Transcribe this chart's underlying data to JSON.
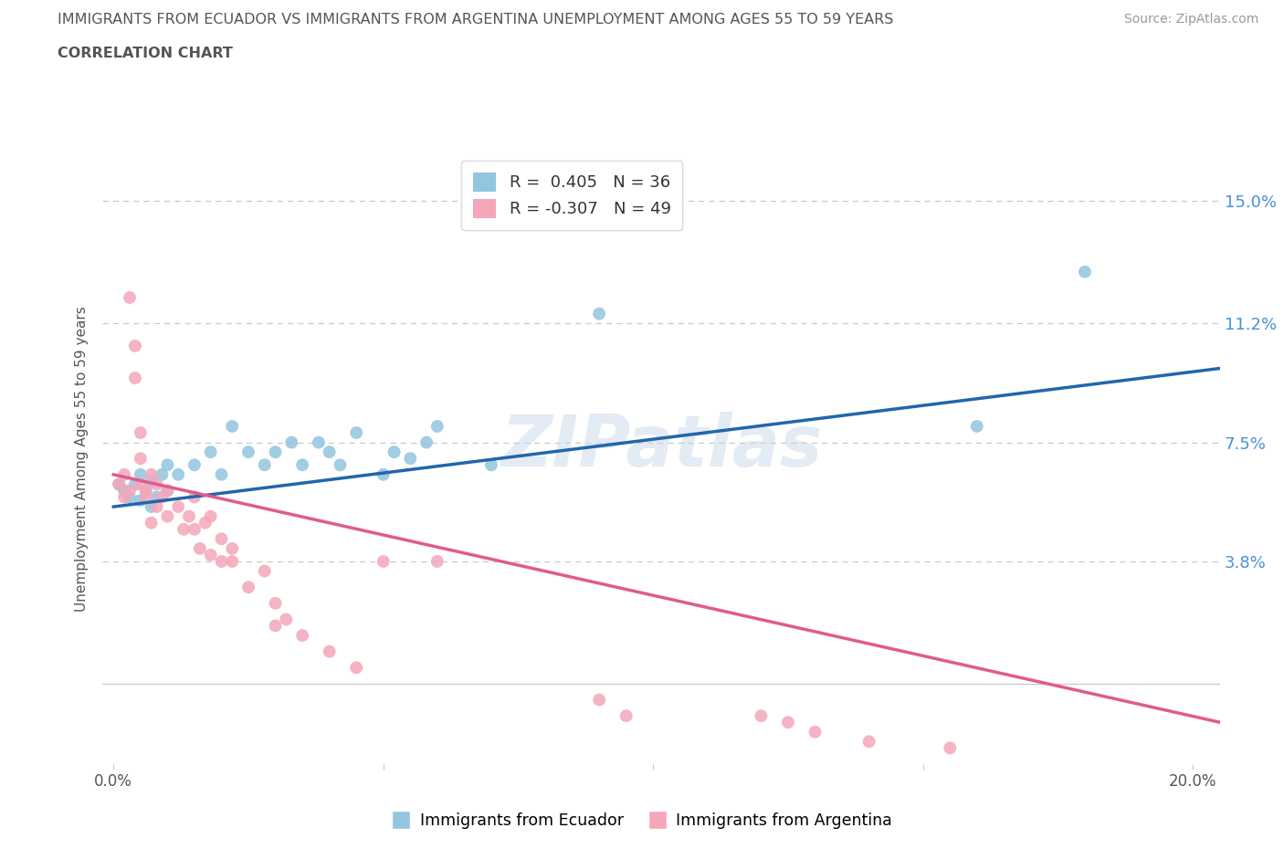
{
  "title_line1": "IMMIGRANTS FROM ECUADOR VS IMMIGRANTS FROM ARGENTINA UNEMPLOYMENT AMONG AGES 55 TO 59 YEARS",
  "title_line2": "CORRELATION CHART",
  "source_text": "Source: ZipAtlas.com",
  "watermark": "ZIPatlas",
  "ylabel": "Unemployment Among Ages 55 to 59 years",
  "xlim": [
    -0.002,
    0.205
  ],
  "ylim": [
    -0.025,
    0.165
  ],
  "xtick_vals": [
    0.0,
    0.05,
    0.1,
    0.15,
    0.2
  ],
  "xtick_labels": [
    "0.0%",
    "",
    "",
    "",
    "20.0%"
  ],
  "ytick_vals": [
    0.038,
    0.075,
    0.112,
    0.15
  ],
  "ytick_labels": [
    "3.8%",
    "7.5%",
    "11.2%",
    "15.0%"
  ],
  "legend_ecuador_r": "R =  0.405",
  "legend_ecuador_n": "N = 36",
  "legend_argentina_r": "R = -0.307",
  "legend_argentina_n": "N = 49",
  "ecuador_color": "#92c5de",
  "argentina_color": "#f4a7b9",
  "ecuador_line_color": "#2166ac",
  "argentina_line_color": "#e05c8a",
  "grid_color": "#c8c8c8",
  "title_color": "#555555",
  "axis_label_color": "#555555",
  "right_tick_color": "#4a90d9",
  "background_color": "#ffffff",
  "ecuador_scatter": [
    [
      0.001,
      0.062
    ],
    [
      0.002,
      0.06
    ],
    [
      0.003,
      0.058
    ],
    [
      0.004,
      0.062
    ],
    [
      0.005,
      0.057
    ],
    [
      0.005,
      0.065
    ],
    [
      0.006,
      0.06
    ],
    [
      0.007,
      0.055
    ],
    [
      0.007,
      0.063
    ],
    [
      0.008,
      0.058
    ],
    [
      0.009,
      0.065
    ],
    [
      0.01,
      0.06
    ],
    [
      0.01,
      0.068
    ],
    [
      0.012,
      0.065
    ],
    [
      0.015,
      0.068
    ],
    [
      0.018,
      0.072
    ],
    [
      0.02,
      0.065
    ],
    [
      0.022,
      0.08
    ],
    [
      0.025,
      0.072
    ],
    [
      0.028,
      0.068
    ],
    [
      0.03,
      0.072
    ],
    [
      0.033,
      0.075
    ],
    [
      0.035,
      0.068
    ],
    [
      0.038,
      0.075
    ],
    [
      0.04,
      0.072
    ],
    [
      0.042,
      0.068
    ],
    [
      0.045,
      0.078
    ],
    [
      0.05,
      0.065
    ],
    [
      0.052,
      0.072
    ],
    [
      0.055,
      0.07
    ],
    [
      0.058,
      0.075
    ],
    [
      0.06,
      0.08
    ],
    [
      0.07,
      0.068
    ],
    [
      0.09,
      0.115
    ],
    [
      0.16,
      0.08
    ],
    [
      0.18,
      0.128
    ]
  ],
  "argentina_scatter": [
    [
      0.001,
      0.062
    ],
    [
      0.002,
      0.058
    ],
    [
      0.002,
      0.065
    ],
    [
      0.003,
      0.06
    ],
    [
      0.003,
      0.12
    ],
    [
      0.004,
      0.105
    ],
    [
      0.004,
      0.095
    ],
    [
      0.005,
      0.078
    ],
    [
      0.005,
      0.07
    ],
    [
      0.005,
      0.062
    ],
    [
      0.006,
      0.06
    ],
    [
      0.006,
      0.058
    ],
    [
      0.007,
      0.05
    ],
    [
      0.007,
      0.065
    ],
    [
      0.008,
      0.055
    ],
    [
      0.008,
      0.062
    ],
    [
      0.009,
      0.058
    ],
    [
      0.01,
      0.052
    ],
    [
      0.01,
      0.06
    ],
    [
      0.012,
      0.055
    ],
    [
      0.013,
      0.048
    ],
    [
      0.014,
      0.052
    ],
    [
      0.015,
      0.058
    ],
    [
      0.015,
      0.048
    ],
    [
      0.016,
      0.042
    ],
    [
      0.017,
      0.05
    ],
    [
      0.018,
      0.052
    ],
    [
      0.018,
      0.04
    ],
    [
      0.02,
      0.045
    ],
    [
      0.02,
      0.038
    ],
    [
      0.022,
      0.042
    ],
    [
      0.022,
      0.038
    ],
    [
      0.025,
      0.03
    ],
    [
      0.028,
      0.035
    ],
    [
      0.03,
      0.025
    ],
    [
      0.03,
      0.018
    ],
    [
      0.032,
      0.02
    ],
    [
      0.035,
      0.015
    ],
    [
      0.04,
      0.01
    ],
    [
      0.045,
      0.005
    ],
    [
      0.05,
      0.038
    ],
    [
      0.06,
      0.038
    ],
    [
      0.09,
      -0.005
    ],
    [
      0.095,
      -0.01
    ],
    [
      0.12,
      -0.01
    ],
    [
      0.125,
      -0.012
    ],
    [
      0.13,
      -0.015
    ],
    [
      0.14,
      -0.018
    ],
    [
      0.155,
      -0.02
    ]
  ],
  "ecuador_line_x": [
    0.0,
    0.205
  ],
  "ecuador_line_y": [
    0.055,
    0.098
  ],
  "argentina_line_x": [
    0.0,
    0.205
  ],
  "argentina_line_y": [
    0.065,
    -0.012
  ]
}
